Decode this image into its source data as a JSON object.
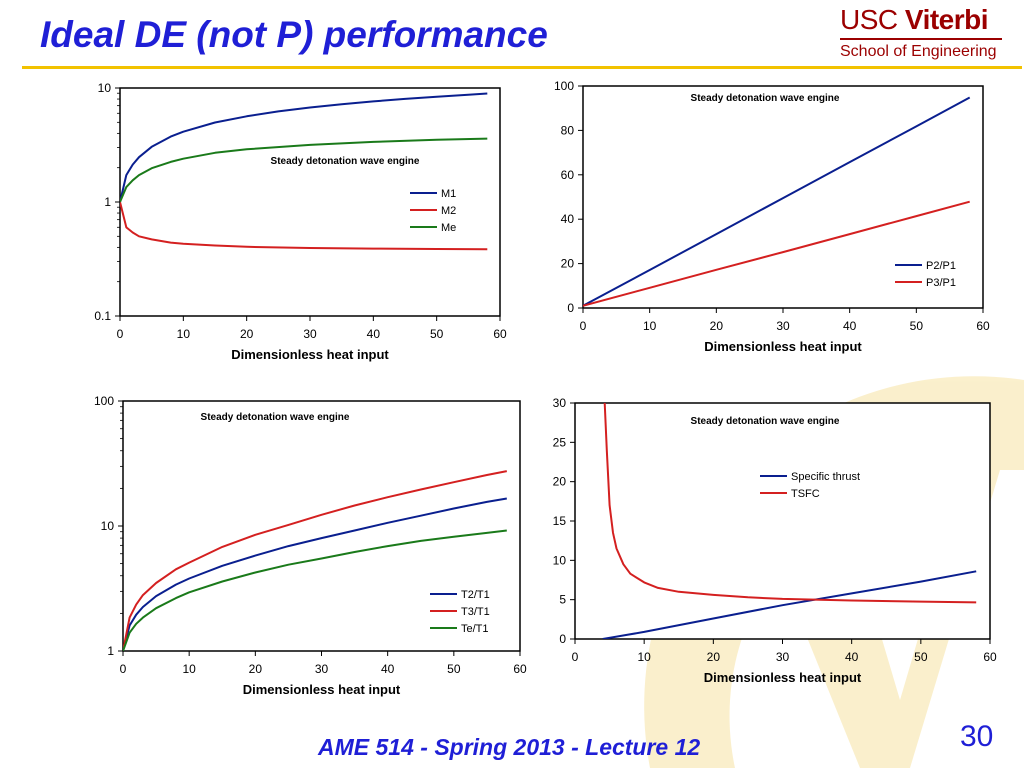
{
  "slide": {
    "title": "Ideal DE (not P) performance",
    "footer": "AME 514 - Spring 2013 - Lecture 12",
    "number": "30",
    "logo": {
      "usc": "USC",
      "viterbi": "Viterbi",
      "sub": "School of Engineering"
    }
  },
  "colors": {
    "title": "#1f1fd6",
    "accent": "#f2c200",
    "logo": "#9b0000",
    "blue": "#0a1f8f",
    "red": "#d42020",
    "green": "#1a7a1a"
  },
  "chart_data": [
    {
      "type": "line",
      "title": "Steady detonation wave engine",
      "xlabel": "Dimensionless heat input",
      "ylabel": "",
      "xlim": [
        0,
        60
      ],
      "ylim": [
        0.1,
        10
      ],
      "yscale": "log",
      "xticks": [
        "0",
        "10",
        "20",
        "30",
        "40",
        "50",
        "60"
      ],
      "yticks": [
        {
          "v": 0.1,
          "label": "0.1"
        },
        {
          "v": 1,
          "label": "1"
        },
        {
          "v": 10,
          "label": "10"
        }
      ],
      "legend_position": "center-right",
      "series": [
        {
          "name": "M1",
          "color": "#0a1f8f",
          "x": [
            0,
            1,
            2,
            3,
            5,
            8,
            10,
            15,
            20,
            25,
            30,
            35,
            40,
            45,
            50,
            55,
            58
          ],
          "y": [
            1,
            1.72,
            2.13,
            2.47,
            3.05,
            3.75,
            4.14,
            4.98,
            5.65,
            6.23,
            6.74,
            7.2,
            7.63,
            8.02,
            8.39,
            8.74,
            8.94
          ]
        },
        {
          "name": "M2",
          "color": "#d42020",
          "x": [
            0,
            1,
            2,
            3,
            5,
            8,
            10,
            15,
            20,
            30,
            40,
            50,
            58
          ],
          "y": [
            1,
            0.6,
            0.54,
            0.5,
            0.47,
            0.44,
            0.43,
            0.415,
            0.405,
            0.395,
            0.39,
            0.387,
            0.385
          ]
        },
        {
          "name": "Me",
          "color": "#1a7a1a",
          "x": [
            0,
            1,
            2,
            3,
            5,
            8,
            10,
            15,
            20,
            30,
            40,
            50,
            58
          ],
          "y": [
            1,
            1.35,
            1.55,
            1.72,
            1.98,
            2.25,
            2.4,
            2.7,
            2.9,
            3.17,
            3.37,
            3.52,
            3.6
          ]
        }
      ]
    },
    {
      "type": "line",
      "title": "Steady detonation wave engine",
      "xlabel": "Dimensionless heat input",
      "ylabel": "",
      "xlim": [
        0,
        60
      ],
      "ylim": [
        0,
        100
      ],
      "yscale": "linear",
      "xticks": [
        "0",
        "10",
        "20",
        "30",
        "40",
        "50",
        "60"
      ],
      "yticks": [
        {
          "v": 0,
          "label": "0"
        },
        {
          "v": 20,
          "label": "20"
        },
        {
          "v": 40,
          "label": "40"
        },
        {
          "v": 60,
          "label": "60"
        },
        {
          "v": 80,
          "label": "80"
        },
        {
          "v": 100,
          "label": "100"
        }
      ],
      "legend_position": "lower-right",
      "series": [
        {
          "name": "P2/P1",
          "color": "#0a1f8f",
          "x": [
            0,
            10,
            20,
            30,
            40,
            50,
            58
          ],
          "y": [
            1,
            17.1,
            33.3,
            49.5,
            65.7,
            81.8,
            94.8
          ]
        },
        {
          "name": "P3/P1",
          "color": "#d42020",
          "x": [
            0,
            10,
            20,
            30,
            40,
            50,
            58
          ],
          "y": [
            1,
            9.1,
            17.2,
            25.2,
            33.3,
            41.4,
            47.9
          ]
        }
      ]
    },
    {
      "type": "line",
      "title": "Steady detonation wave engine",
      "xlabel": "Dimensionless heat input",
      "ylabel": "",
      "xlim": [
        0,
        60
      ],
      "ylim": [
        1,
        100
      ],
      "yscale": "log",
      "xticks": [
        "0",
        "10",
        "20",
        "30",
        "40",
        "50",
        "60"
      ],
      "yticks": [
        {
          "v": 1,
          "label": "1"
        },
        {
          "v": 10,
          "label": "10"
        },
        {
          "v": 100,
          "label": "100"
        }
      ],
      "legend_position": "lower-right",
      "series": [
        {
          "name": "T2/T1",
          "color": "#0a1f8f",
          "x": [
            0,
            1,
            2,
            3,
            5,
            8,
            10,
            15,
            20,
            25,
            30,
            35,
            40,
            45,
            50,
            55,
            58
          ],
          "y": [
            1,
            1.6,
            1.95,
            2.25,
            2.75,
            3.4,
            3.8,
            4.8,
            5.8,
            6.9,
            8.0,
            9.2,
            10.6,
            12.1,
            13.8,
            15.6,
            16.6
          ]
        },
        {
          "name": "T3/T1",
          "color": "#d42020",
          "x": [
            0,
            1,
            2,
            3,
            5,
            8,
            10,
            15,
            20,
            25,
            30,
            35,
            40,
            45,
            50,
            55,
            58
          ],
          "y": [
            1,
            1.85,
            2.35,
            2.8,
            3.5,
            4.5,
            5.1,
            6.8,
            8.5,
            10.2,
            12.3,
            14.6,
            17.0,
            19.6,
            22.4,
            25.6,
            27.5
          ]
        },
        {
          "name": "Te/T1",
          "color": "#1a7a1a",
          "x": [
            0,
            1,
            2,
            3,
            5,
            8,
            10,
            15,
            20,
            25,
            30,
            35,
            40,
            45,
            50,
            55,
            58
          ],
          "y": [
            1,
            1.4,
            1.65,
            1.85,
            2.2,
            2.65,
            2.95,
            3.6,
            4.25,
            4.9,
            5.5,
            6.2,
            6.9,
            7.6,
            8.2,
            8.8,
            9.2
          ]
        }
      ]
    },
    {
      "type": "line",
      "title": "Steady detonation wave engine",
      "xlabel": "Dimensionless heat input",
      "ylabel": "",
      "xlim": [
        0,
        60
      ],
      "ylim": [
        0,
        30
      ],
      "yscale": "linear",
      "xticks": [
        "0",
        "10",
        "20",
        "30",
        "40",
        "50",
        "60"
      ],
      "yticks": [
        {
          "v": 0,
          "label": "0"
        },
        {
          "v": 5,
          "label": "5"
        },
        {
          "v": 10,
          "label": "10"
        },
        {
          "v": 15,
          "label": "15"
        },
        {
          "v": 20,
          "label": "20"
        },
        {
          "v": 25,
          "label": "25"
        },
        {
          "v": 30,
          "label": "30"
        }
      ],
      "legend_position": "top-right",
      "series": [
        {
          "name": "Specific thrust",
          "color": "#0a1f8f",
          "x": [
            4,
            10,
            20,
            30,
            40,
            50,
            58
          ],
          "y": [
            0,
            0.9,
            2.6,
            4.3,
            5.8,
            7.3,
            8.6
          ]
        },
        {
          "name": "TSFC",
          "color": "#d42020",
          "x": [
            4.3,
            4.6,
            5,
            5.5,
            6,
            7,
            8,
            10,
            12,
            15,
            20,
            25,
            30,
            40,
            50,
            58
          ],
          "y": [
            30,
            24,
            17,
            13.5,
            11.5,
            9.5,
            8.3,
            7.2,
            6.5,
            6.0,
            5.6,
            5.3,
            5.1,
            4.9,
            4.75,
            4.65
          ]
        }
      ]
    }
  ]
}
